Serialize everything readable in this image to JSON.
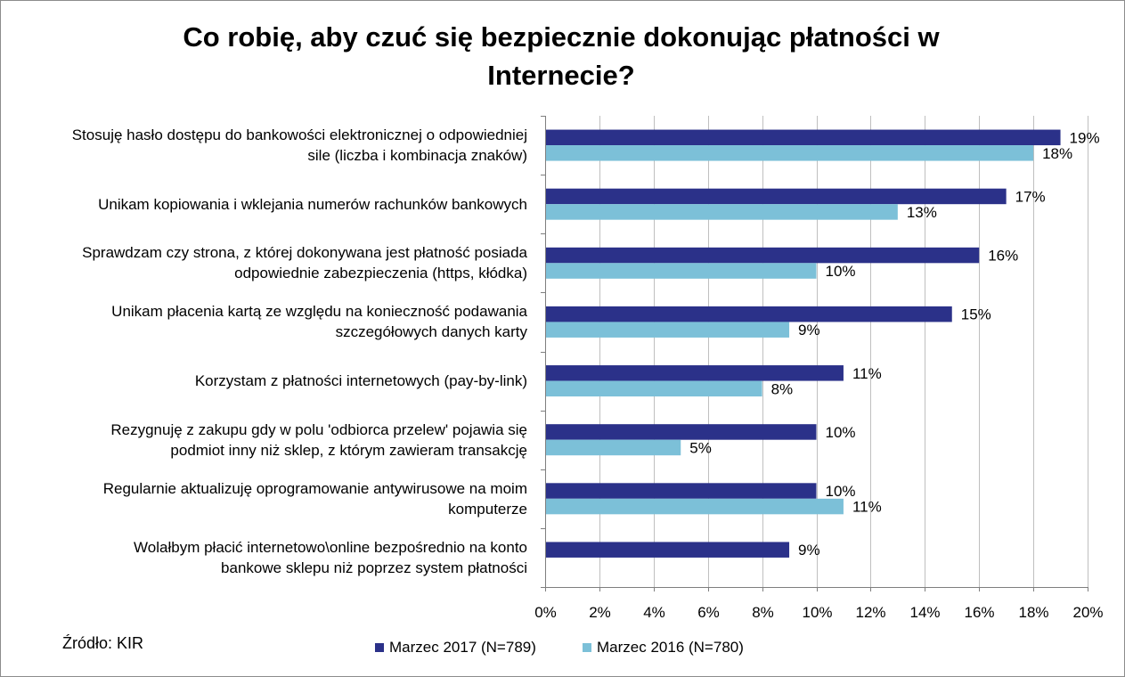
{
  "chart_data": {
    "type": "bar",
    "orientation": "horizontal",
    "title": "Co robię, aby czuć się bezpiecznie dokonując płatności w\nInternecie?",
    "categories": [
      "Stosuję hasło dostępu do bankowości elektronicznej o odpowiedniej\nsile (liczba i kombinacja znaków)",
      "Unikam kopiowania i wklejania numerów rachunków bankowych",
      "Sprawdzam czy strona, z której dokonywana jest płatność posiada\nodpowiednie zabezpieczenia (https, kłódka)",
      "Unikam płacenia kartą ze względu na konieczność podawania\nszczegółowych danych karty",
      "Korzystam z płatności internetowych (pay-by-link)",
      "Rezygnuję z zakupu gdy w polu 'odbiorca przelew' pojawia się\npodmiot inny niż sklep, z którym zawieram transakcję",
      "Regularnie aktualizuję oprogramowanie antywirusowe na moim\nkomputerze",
      "Wolałbym płacić internetowo\\online bezpośrednio na konto\nbankowe sklepu niż poprzez system płatności"
    ],
    "series": [
      {
        "name": "Marzec 2017 (N=789)",
        "color": "#2b3189",
        "values": [
          19,
          17,
          16,
          15,
          11,
          10,
          10,
          9
        ]
      },
      {
        "name": "Marzec 2016 (N=780)",
        "color": "#7cc0d8",
        "values": [
          18,
          13,
          10,
          9,
          8,
          5,
          11,
          null
        ]
      }
    ],
    "value_suffix": "%",
    "xlim": [
      0,
      20
    ],
    "xticks": [
      "0%",
      "2%",
      "4%",
      "6%",
      "8%",
      "10%",
      "12%",
      "14%",
      "16%",
      "18%",
      "20%"
    ],
    "grid": true,
    "legend_position": "bottom"
  },
  "source": "Źródło: KIR"
}
